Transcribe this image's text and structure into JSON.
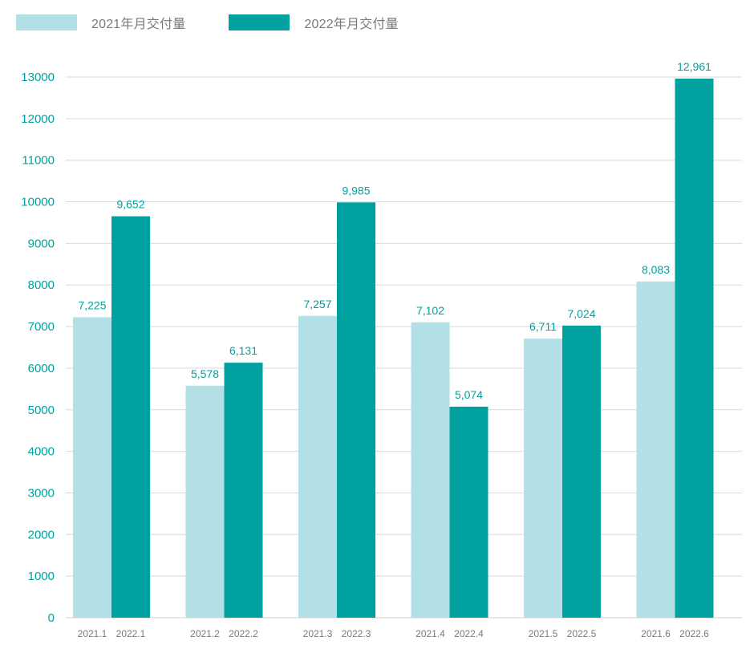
{
  "chart_data": {
    "type": "bar",
    "title": "",
    "xlabel": "",
    "ylabel": "",
    "ylim": [
      0,
      13000
    ],
    "yticks": [
      0,
      1000,
      2000,
      3000,
      4000,
      5000,
      6000,
      7000,
      8000,
      9000,
      10000,
      11000,
      12000,
      13000
    ],
    "ytick_labels": [
      "0",
      "1000",
      "2000",
      "3000",
      "4000",
      "5000",
      "6000",
      "7000",
      "8000",
      "9000",
      "10000",
      "11000",
      "12000",
      "13000"
    ],
    "grid": true,
    "legend_position": "top-left",
    "series": [
      {
        "name": "2021年月交付量",
        "color": "#b2e0e6",
        "categories": [
          "2021.1",
          "2021.2",
          "2021.3",
          "2021.4",
          "2021.5",
          "2021.6"
        ],
        "values": [
          7225,
          5578,
          7257,
          7102,
          6711,
          8083
        ],
        "labels": [
          "7,225",
          "5,578",
          "7,257",
          "7,102",
          "6,711",
          "8,083"
        ]
      },
      {
        "name": "2022年月交付量",
        "color": "#00a19f",
        "categories": [
          "2022.1",
          "2022.2",
          "2022.3",
          "2022.4",
          "2022.5",
          "2022.6"
        ],
        "values": [
          9652,
          6131,
          9985,
          5074,
          7024,
          12961
        ],
        "labels": [
          "9,652",
          "6,131",
          "9,985",
          "5,074",
          "7,024",
          "12,961"
        ]
      }
    ],
    "colors": {
      "axis_text": "#00a19f",
      "data_label": "#00a19f",
      "category_text": "#7a7a7a",
      "gridline": "#d9d9d9"
    }
  },
  "legend": {
    "items": [
      {
        "label": "2021年月交付量",
        "color": "#b2e0e6"
      },
      {
        "label": "2022年月交付量",
        "color": "#00a19f"
      }
    ]
  }
}
